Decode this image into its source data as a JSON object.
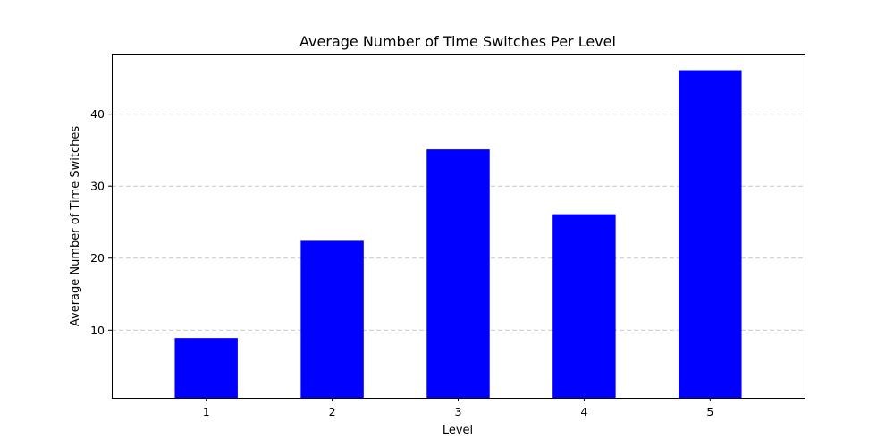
{
  "chart_data": {
    "type": "bar",
    "title": "Average Number of Time Switches Per Level",
    "xlabel": "Level",
    "ylabel": "Average Number of Time Switches",
    "categories": [
      "1",
      "2",
      "3",
      "4",
      "5"
    ],
    "values": [
      8.9,
      22.4,
      35.1,
      26.1,
      46.1
    ],
    "ylim": [
      0.6,
      48.4
    ],
    "yticks": [
      10,
      20,
      30,
      40
    ],
    "grid": "y-dashed",
    "bar_color": "#0000ff"
  }
}
